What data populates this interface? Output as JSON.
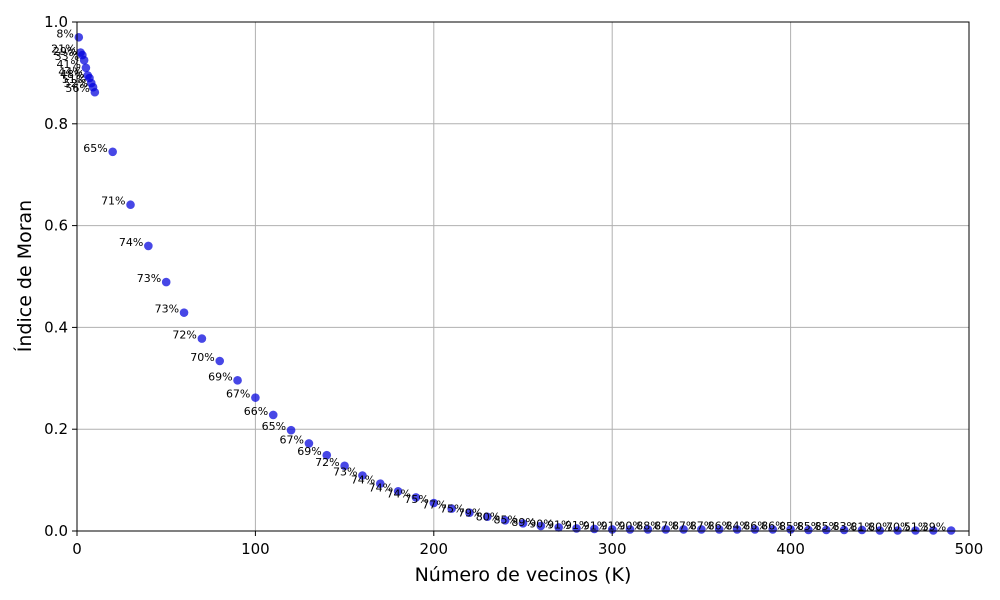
{
  "chart_data": {
    "type": "scatter",
    "title": "",
    "xlabel": "Número de vecinos (K)",
    "ylabel": "Índice de Moran",
    "xlim": [
      0,
      500
    ],
    "ylim": [
      0,
      1.0
    ],
    "xticks": [
      "0",
      "100",
      "200",
      "300",
      "400",
      "500"
    ],
    "yticks": [
      "0.0",
      "0.2",
      "0.4",
      "0.6",
      "0.8",
      "1.0"
    ],
    "grid": true,
    "legend": "none",
    "point_color": "#0000dd",
    "points": [
      {
        "x": 1,
        "y": 0.97,
        "label": "8%"
      },
      {
        "x": 2,
        "y": 0.94,
        "label": "21%"
      },
      {
        "x": 3,
        "y": 0.935,
        "label": "29%"
      },
      {
        "x": 4,
        "y": 0.925,
        "label": "33%"
      },
      {
        "x": 5,
        "y": 0.91,
        "label": "41%"
      },
      {
        "x": 6,
        "y": 0.895,
        "label": "44%"
      },
      {
        "x": 7,
        "y": 0.89,
        "label": "48%"
      },
      {
        "x": 8,
        "y": 0.88,
        "label": "51%"
      },
      {
        "x": 9,
        "y": 0.872,
        "label": "52%"
      },
      {
        "x": 10,
        "y": 0.862,
        "label": "56%"
      },
      {
        "x": 20,
        "y": 0.745,
        "label": "65%"
      },
      {
        "x": 30,
        "y": 0.641,
        "label": "71%"
      },
      {
        "x": 40,
        "y": 0.56,
        "label": "74%"
      },
      {
        "x": 50,
        "y": 0.489,
        "label": "73%"
      },
      {
        "x": 60,
        "y": 0.429,
        "label": "73%"
      },
      {
        "x": 70,
        "y": 0.378,
        "label": "72%"
      },
      {
        "x": 80,
        "y": 0.334,
        "label": "70%"
      },
      {
        "x": 90,
        "y": 0.296,
        "label": "69%"
      },
      {
        "x": 100,
        "y": 0.262,
        "label": "67%"
      },
      {
        "x": 110,
        "y": 0.228,
        "label": "66%"
      },
      {
        "x": 120,
        "y": 0.198,
        "label": "65%"
      },
      {
        "x": 130,
        "y": 0.172,
        "label": "67%"
      },
      {
        "x": 140,
        "y": 0.149,
        "label": "69%"
      },
      {
        "x": 150,
        "y": 0.128,
        "label": "72%"
      },
      {
        "x": 160,
        "y": 0.109,
        "label": "73%"
      },
      {
        "x": 170,
        "y": 0.093,
        "label": "74%"
      },
      {
        "x": 180,
        "y": 0.078,
        "label": "74%"
      },
      {
        "x": 190,
        "y": 0.066,
        "label": "74%"
      },
      {
        "x": 200,
        "y": 0.055,
        "label": "75%"
      },
      {
        "x": 210,
        "y": 0.044,
        "label": "77%"
      },
      {
        "x": 220,
        "y": 0.036,
        "label": "75%"
      },
      {
        "x": 230,
        "y": 0.028,
        "label": "79%"
      },
      {
        "x": 240,
        "y": 0.021,
        "label": "80%"
      },
      {
        "x": 250,
        "y": 0.015,
        "label": "85%"
      },
      {
        "x": 260,
        "y": 0.01,
        "label": "89%"
      },
      {
        "x": 270,
        "y": 0.007,
        "label": "90%"
      },
      {
        "x": 280,
        "y": 0.005,
        "label": "91%"
      },
      {
        "x": 290,
        "y": 0.004,
        "label": "91%"
      },
      {
        "x": 300,
        "y": 0.003,
        "label": "91%"
      },
      {
        "x": 310,
        "y": 0.003,
        "label": "91%"
      },
      {
        "x": 320,
        "y": 0.003,
        "label": "90%"
      },
      {
        "x": 330,
        "y": 0.003,
        "label": "88%"
      },
      {
        "x": 340,
        "y": 0.003,
        "label": "87%"
      },
      {
        "x": 350,
        "y": 0.003,
        "label": "87%"
      },
      {
        "x": 360,
        "y": 0.003,
        "label": "87%"
      },
      {
        "x": 370,
        "y": 0.003,
        "label": "86%"
      },
      {
        "x": 380,
        "y": 0.003,
        "label": "84%"
      },
      {
        "x": 390,
        "y": 0.003,
        "label": "86%"
      },
      {
        "x": 400,
        "y": 0.003,
        "label": "86%"
      },
      {
        "x": 410,
        "y": 0.002,
        "label": "85%"
      },
      {
        "x": 420,
        "y": 0.002,
        "label": "85%"
      },
      {
        "x": 430,
        "y": 0.002,
        "label": "85%"
      },
      {
        "x": 440,
        "y": 0.002,
        "label": "83%"
      },
      {
        "x": 450,
        "y": 0.001,
        "label": "81%"
      },
      {
        "x": 460,
        "y": 0.001,
        "label": "80%"
      },
      {
        "x": 470,
        "y": 0.001,
        "label": "70%"
      },
      {
        "x": 480,
        "y": 0.001,
        "label": "51%"
      },
      {
        "x": 490,
        "y": 0.001,
        "label": "39%"
      }
    ]
  }
}
